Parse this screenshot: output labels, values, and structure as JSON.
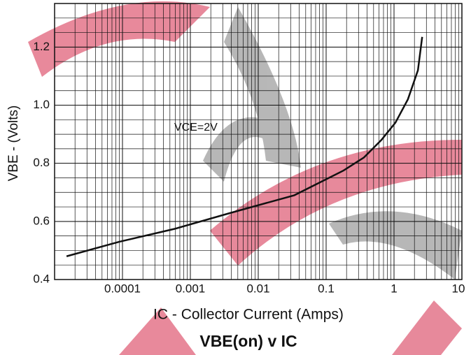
{
  "chart_data": {
    "type": "line",
    "title": "VBE(on) v IC",
    "x_label": "IC - Collector Current (Amps)",
    "y_label": "VBE - (Volts)",
    "annotation": "VCE=2V",
    "x_log": true,
    "grid": true,
    "minor_grid": true,
    "xlim": [
      1e-05,
      10
    ],
    "xticks": [
      0.0001,
      0.001,
      0.01,
      0.1,
      1,
      10
    ],
    "ylim": [
      0.4,
      1.35
    ],
    "yticks": [
      0.4,
      0.6,
      0.8,
      {
        "value": 1,
        "label": "1.0"
      },
      1.2
    ],
    "series": [
      {
        "name": "VCE=2V",
        "color": "#111111",
        "x": [
          1.5e-05,
          9e-05,
          0.0006,
          0.004,
          0.034,
          0.18,
          0.36,
          0.65,
          1.05,
          1.6,
          2.25,
          2.6
        ],
        "values": [
          0.48,
          0.53,
          0.575,
          0.63,
          0.69,
          0.775,
          0.82,
          0.88,
          0.94,
          1.02,
          1.12,
          1.235
        ]
      }
    ]
  }
}
